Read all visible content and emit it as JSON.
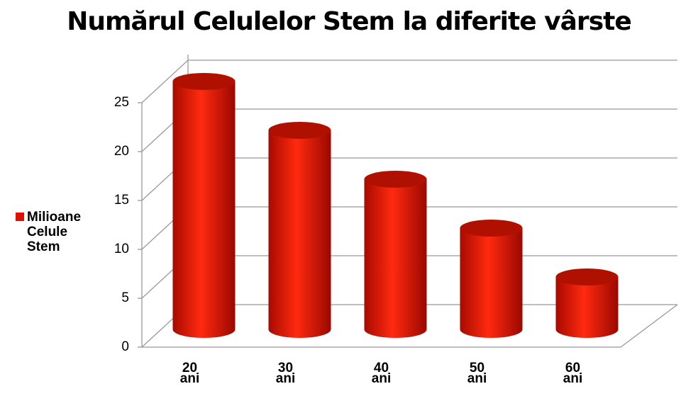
{
  "chart_data": {
    "type": "bar3d",
    "title": "Numărul Celulelor Stem la diferite vârste",
    "categories": [
      "20\nani",
      "30\nani",
      "40\nani",
      "50\nani",
      "60\nani"
    ],
    "series": [
      {
        "name": "Milioane Celule Stem",
        "color": "#e01000",
        "values": [
          25,
          20,
          15,
          10,
          5
        ]
      }
    ],
    "ylim": [
      0,
      25
    ],
    "yticks": [
      0,
      5,
      10,
      15,
      20,
      25
    ],
    "grid": true
  }
}
